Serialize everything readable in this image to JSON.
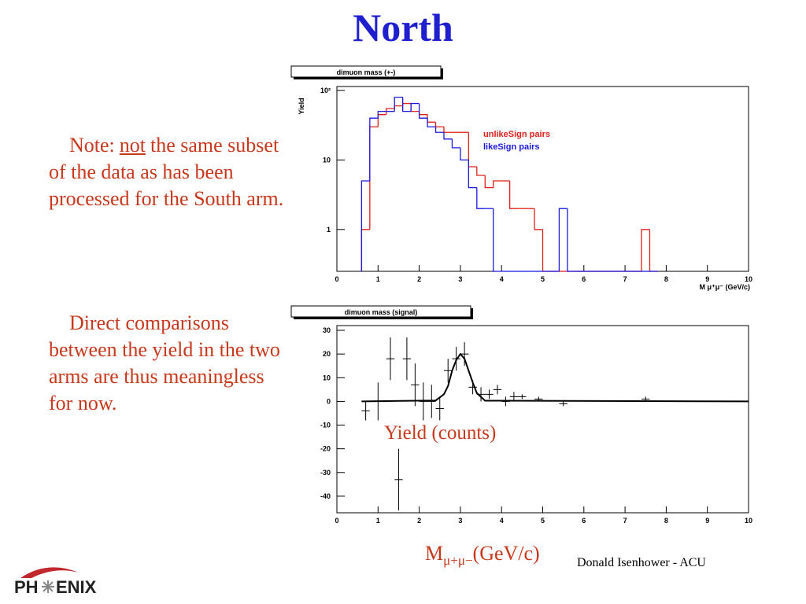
{
  "slide": {
    "title": "North",
    "note1": {
      "prefix": "Note:",
      "emphasis": "not",
      "rest": "the same subset of the data as has been processed for the South arm."
    },
    "note2": "Direct comparisons between the yield in the two arms are thus meaningless for now.",
    "y_caption": "Yield (counts)",
    "x_caption": {
      "symbol": "M",
      "subscript": "μ+μ−",
      "unit": "(GeV/c)"
    },
    "footer": "Donald Isenhower - ACU",
    "logo": {
      "left": "PH",
      "right": "ENIX"
    }
  },
  "chart_data": [
    {
      "type": "histogram",
      "title": "dimuon mass (+-)",
      "ylabel": "Yield",
      "xlabel": "M  μ⁺μ⁻ (GeV/c)",
      "log_y": true,
      "legend": "upper right",
      "bins": [
        0.6,
        0.8,
        1.0,
        1.2,
        1.4,
        1.6,
        1.8,
        2.0,
        2.2,
        2.4,
        2.6,
        2.8,
        3.0,
        3.2,
        3.4,
        3.6,
        3.8,
        4.0,
        4.2,
        4.4,
        4.6,
        4.8,
        5.0,
        5.2,
        5.4,
        5.6,
        5.8,
        6.0,
        6.2,
        6.4,
        6.6,
        6.8,
        7.0,
        7.2,
        7.4,
        7.6,
        7.8
      ],
      "series": [
        {
          "name": "unlikeSign pairs",
          "color": "#e0201a",
          "values": [
            1,
            30,
            45,
            55,
            60,
            65,
            50,
            45,
            35,
            30,
            25,
            25,
            25,
            8,
            6,
            4,
            5,
            5,
            2,
            2,
            2,
            1,
            0,
            0,
            0,
            0,
            0,
            0,
            0,
            0,
            0,
            0,
            0,
            0,
            1,
            0
          ]
        },
        {
          "name": "likeSign pairs",
          "color": "#1a1ae0",
          "values": [
            5,
            40,
            50,
            50,
            80,
            50,
            65,
            40,
            30,
            25,
            20,
            15,
            10,
            4,
            2,
            2,
            0,
            0,
            0,
            0,
            0,
            0,
            0,
            0,
            2,
            0,
            0,
            0,
            0,
            0,
            0,
            0,
            0,
            0,
            0,
            0
          ]
        }
      ],
      "xlim": [
        0,
        10
      ],
      "xticks": [
        0,
        1,
        2,
        3,
        4,
        5,
        6,
        7,
        8,
        9,
        10
      ],
      "ylim": [
        0.25,
        114
      ],
      "yticks": [
        1,
        10,
        {
          "value": 100,
          "label": "10²"
        }
      ]
    },
    {
      "type": "errorbar",
      "title": "dimuon mass (signal)",
      "x": [
        0.7,
        1.0,
        1.3,
        1.5,
        1.7,
        1.9,
        2.1,
        2.3,
        2.5,
        2.7,
        2.9,
        3.1,
        3.3,
        3.5,
        3.7,
        3.9,
        4.1,
        4.3,
        4.5,
        4.9,
        5.5,
        7.5
      ],
      "values": [
        -4,
        0,
        18,
        -33,
        18,
        7,
        0,
        0,
        -3,
        13,
        18,
        20,
        6,
        3,
        3,
        5,
        0,
        2,
        2,
        1,
        -1,
        1
      ],
      "errors": [
        4,
        8,
        9,
        13,
        9,
        9,
        8,
        7,
        5,
        5,
        5,
        5,
        3,
        3,
        2,
        2,
        2,
        2,
        1,
        1,
        1,
        1
      ],
      "xerr": 0.1,
      "color": "#000000",
      "fit": {
        "x": [
          0.6,
          2.4,
          2.6,
          2.7,
          2.8,
          2.9,
          3.0,
          3.1,
          3.2,
          3.3,
          3.4,
          3.6,
          10
        ],
        "values": [
          0,
          0.4,
          3,
          6.5,
          13,
          17.5,
          20,
          18,
          13,
          8,
          3.5,
          0.3,
          0
        ]
      },
      "xlim": [
        0,
        10
      ],
      "xticks": [
        0,
        1,
        2,
        3,
        4,
        5,
        6,
        7,
        8,
        9,
        10
      ],
      "ylim": [
        -47,
        32
      ],
      "yticks": [
        -40,
        -30,
        -20,
        -10,
        0,
        10,
        20,
        30
      ]
    }
  ]
}
